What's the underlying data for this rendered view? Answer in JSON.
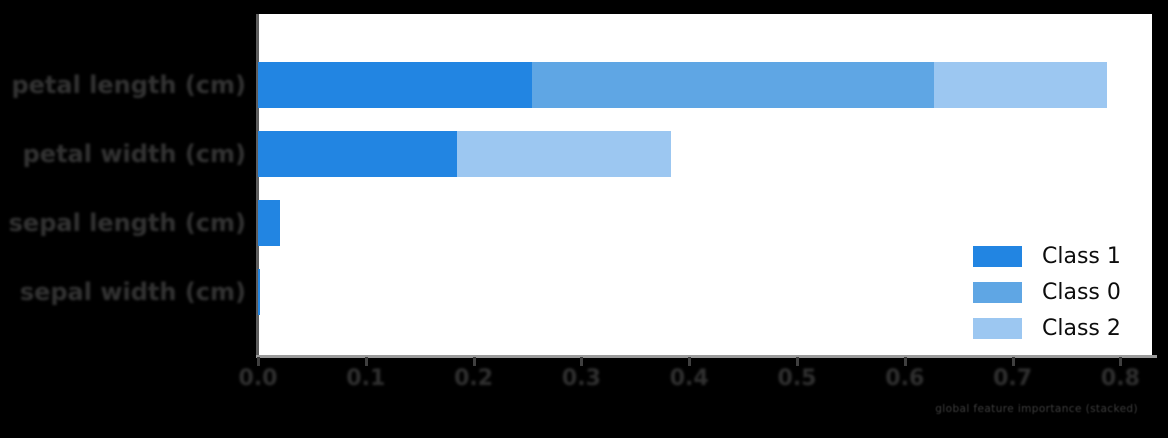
{
  "figure": {
    "background": "#000000",
    "plot_background": "#ffffff",
    "caption": "global feature importance (stacked)"
  },
  "chart_data": {
    "type": "bar",
    "orientation": "horizontal",
    "stacked": true,
    "title": "",
    "xlabel": "",
    "ylabel": "",
    "categories": [
      "petal length (cm)",
      "petal width (cm)",
      "sepal length (cm)",
      "sepal width (cm)"
    ],
    "series": [
      {
        "name": "Class 1",
        "color": "#2285e2",
        "values": [
          0.254,
          0.185,
          0.02,
          0.002
        ]
      },
      {
        "name": "Class 0",
        "color": "#5fa6e4",
        "values": [
          0.373,
          0,
          0,
          0
        ]
      },
      {
        "name": "Class 2",
        "color": "#9cc7f1",
        "values": [
          0.161,
          0.199,
          0,
          0
        ]
      }
    ],
    "xlim": [
      0,
      0.83
    ],
    "x_ticks": [
      "0.0",
      "0.1",
      "0.2",
      "0.3",
      "0.4",
      "0.5",
      "0.6",
      "0.7",
      "0.8"
    ],
    "grid": false,
    "legend": {
      "position": "lower-right",
      "entries": [
        "Class 1",
        "Class 0",
        "Class 2"
      ]
    }
  },
  "colors": {
    "axis_spine_left": "#5e5e5e",
    "axis_spine_bottom": "#9b9b9b",
    "tick": "#3f3f3f",
    "tick_label": "#303030",
    "category_label": "#333333",
    "legend_text": "#0d0d0d",
    "caption": "#3b3b3b"
  }
}
